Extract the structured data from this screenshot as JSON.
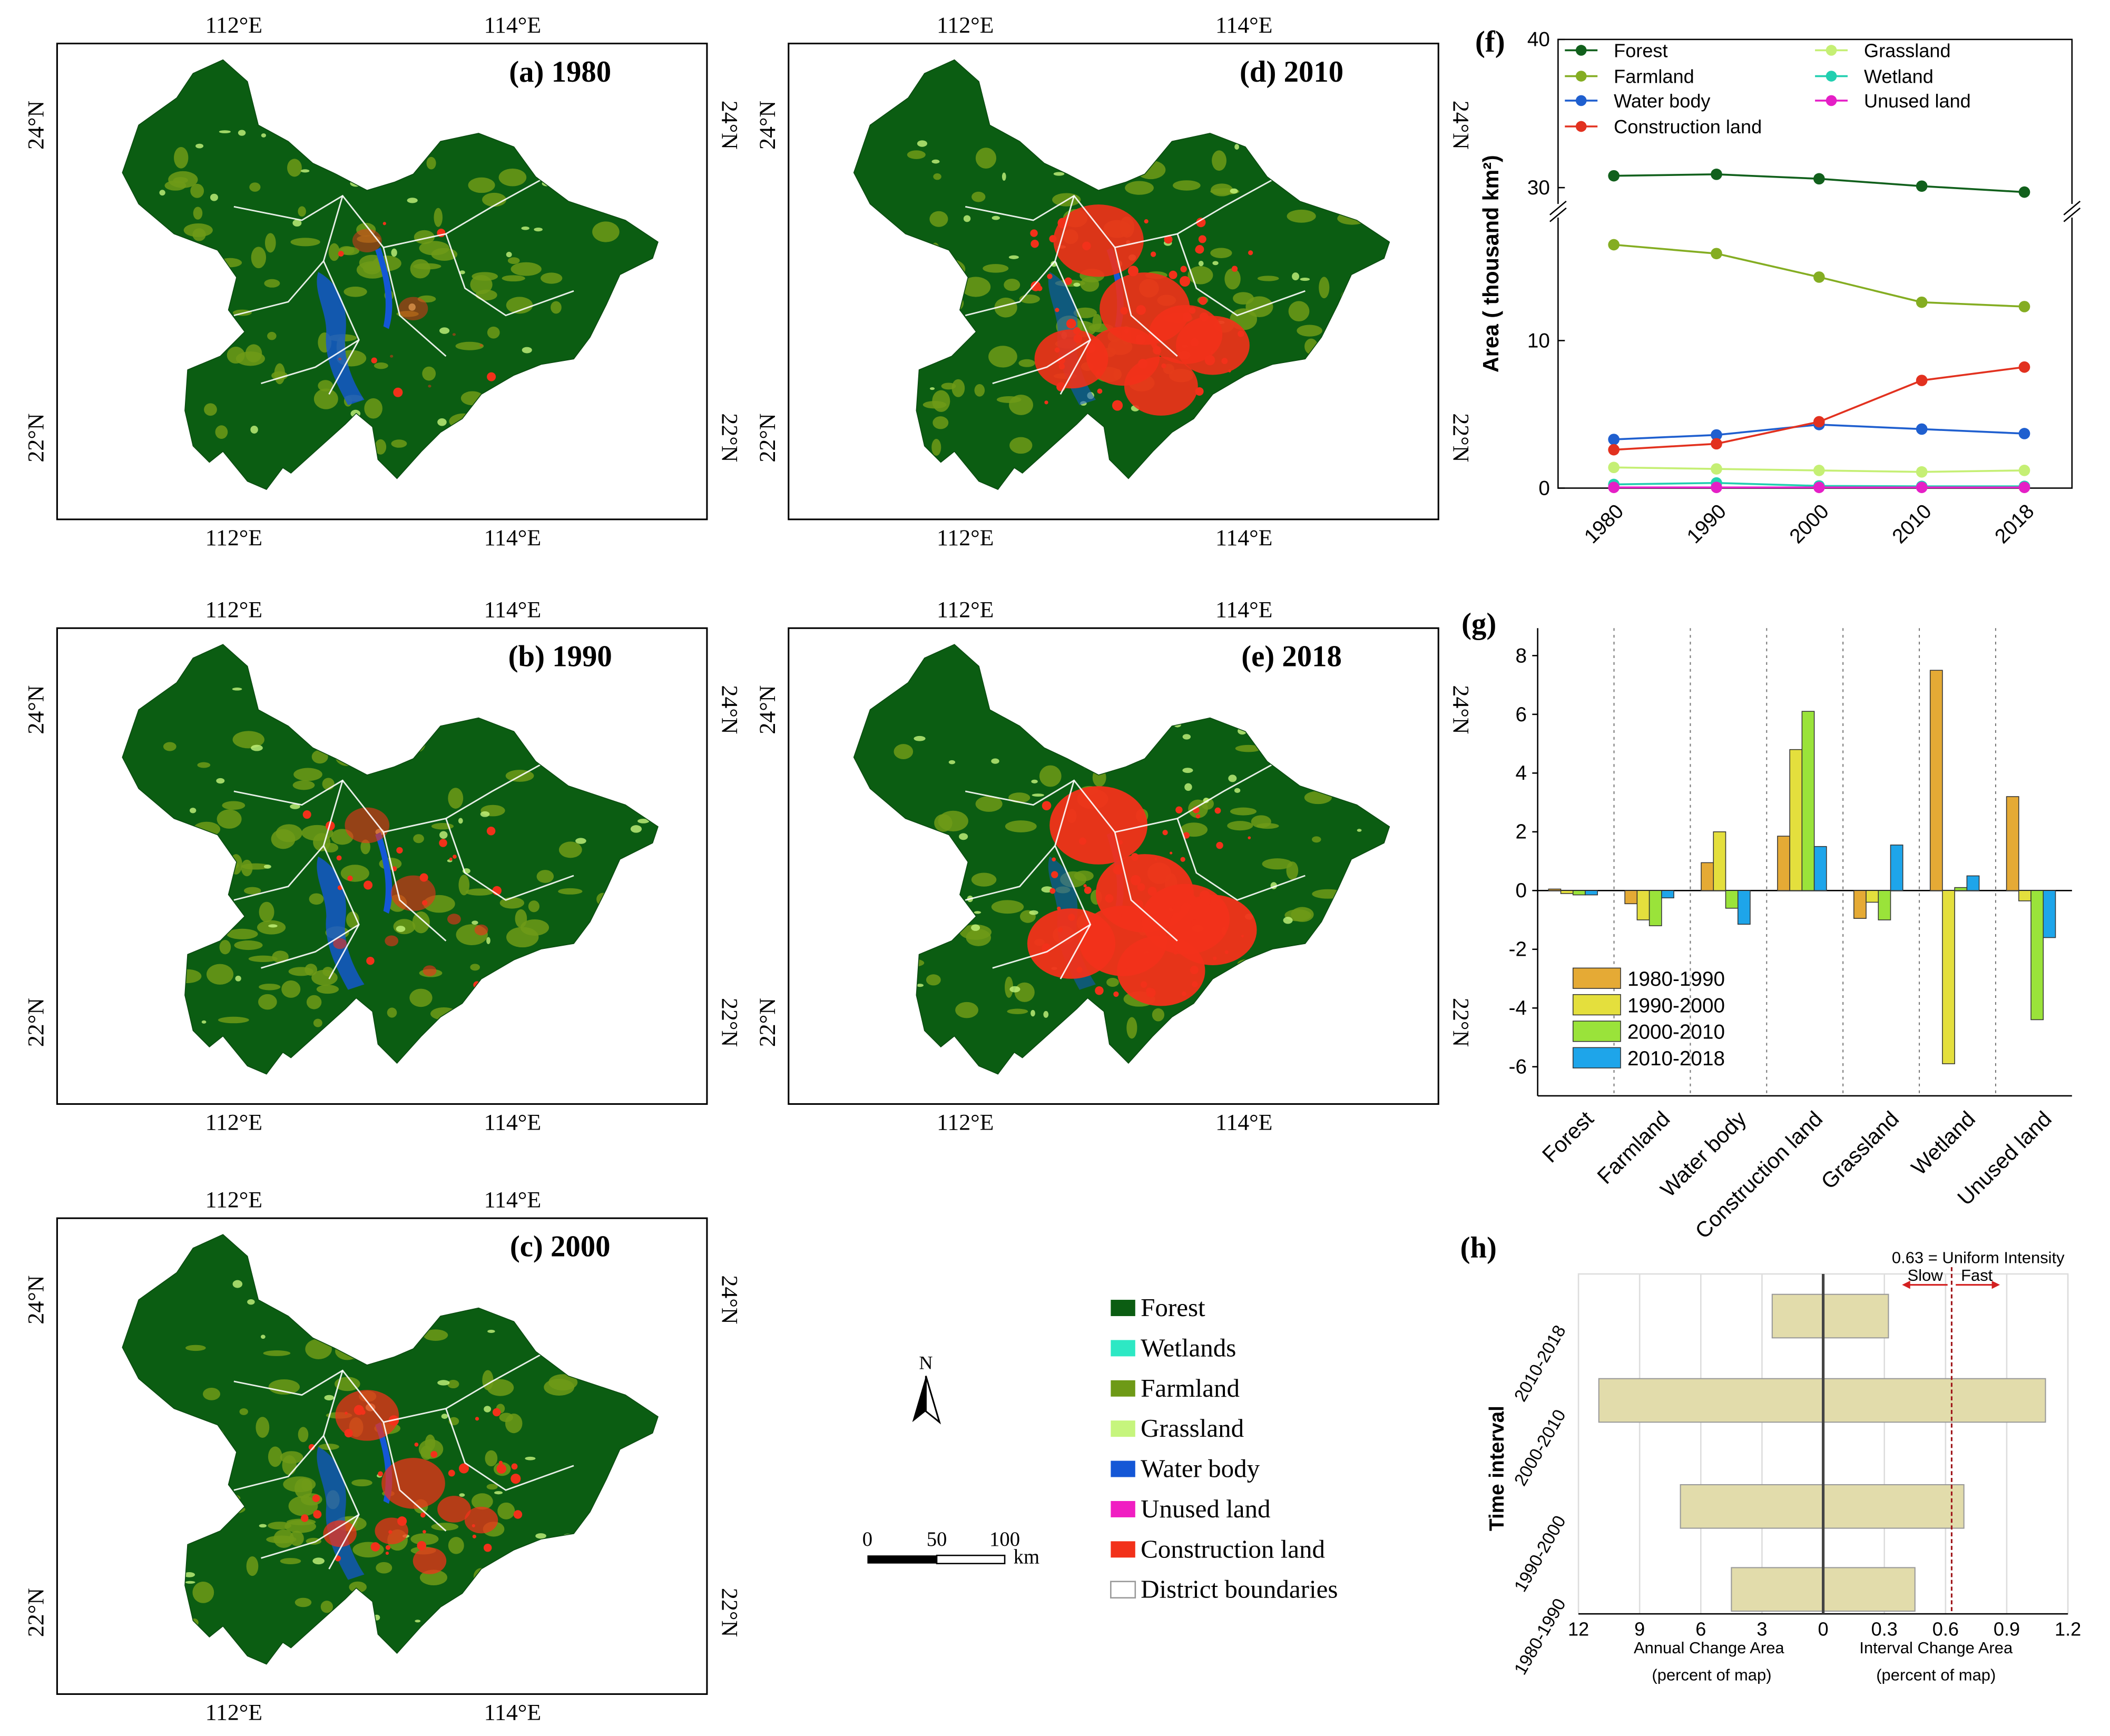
{
  "maps": [
    {
      "id": "a",
      "title": "(a) 1980",
      "construction": 0.1,
      "water": 0.8
    },
    {
      "id": "b",
      "title": "(b) 1990",
      "construction": 0.3,
      "water": 0.8
    },
    {
      "id": "c",
      "title": "(c) 2000",
      "construction": 0.55,
      "water": 0.7
    },
    {
      "id": "d",
      "title": "(d) 2010",
      "construction": 0.9,
      "water": 0.55
    },
    {
      "id": "e",
      "title": "(e) 2018",
      "construction": 1.0,
      "water": 0.5
    }
  ],
  "map_axes": {
    "lon_labels": [
      "112°E",
      "114°E"
    ],
    "lat_labels": [
      "24°N",
      "22°N"
    ]
  },
  "legend": {
    "items": [
      {
        "label": "Forest",
        "color": "#0b5d12"
      },
      {
        "label": "Wetlands",
        "color": "#2de8c4"
      },
      {
        "label": "Farmland",
        "color": "#6e9a17"
      },
      {
        "label": "Grassland",
        "color": "#c6f57d"
      },
      {
        "label": "Water body",
        "color": "#1457d6"
      },
      {
        "label": "Unused land",
        "color": "#f01ec2"
      },
      {
        "label": "Construction land",
        "color": "#f2311a"
      },
      {
        "label": "District boundaries",
        "color": "#ffffff"
      }
    ],
    "north_label": "N",
    "scale_labels": [
      "0",
      "50",
      "100"
    ],
    "scale_unit": "km"
  },
  "chart_data": [
    {
      "panel": "(f)",
      "type": "line",
      "x": [
        "1980",
        "1990",
        "2000",
        "2010",
        "2018"
      ],
      "ylabel": "Area ( thousand km²)",
      "y_ticks": [
        "0",
        "10",
        "30",
        "40"
      ],
      "ylim_lower": [
        0,
        18
      ],
      "ylim_upper": [
        28,
        40
      ],
      "series": [
        {
          "name": "Forest",
          "color": "#11601c",
          "values": [
            30.8,
            30.9,
            30.6,
            30.1,
            29.7
          ]
        },
        {
          "name": "Farmland",
          "color": "#84ad22",
          "values": [
            16.5,
            15.9,
            14.3,
            12.6,
            12.3
          ]
        },
        {
          "name": "Water body",
          "color": "#1f5fcf",
          "values": [
            3.3,
            3.6,
            4.3,
            4.0,
            3.7
          ]
        },
        {
          "name": "Construction land",
          "color": "#e2311f",
          "values": [
            2.6,
            3.0,
            4.5,
            7.3,
            8.2
          ]
        },
        {
          "name": "Grassland",
          "color": "#c5ef74",
          "values": [
            1.4,
            1.3,
            1.2,
            1.1,
            1.2
          ]
        },
        {
          "name": "Wetland",
          "color": "#21cfb0",
          "values": [
            0.25,
            0.35,
            0.15,
            0.12,
            0.12
          ]
        },
        {
          "name": "Unused land",
          "color": "#e51fc6",
          "values": [
            0.05,
            0.05,
            0.05,
            0.05,
            0.05
          ]
        }
      ]
    },
    {
      "panel": "(g)",
      "type": "bar",
      "categories": [
        "Forest",
        "Farmland",
        "Water body",
        "Construction land",
        "Grassland",
        "Wetland",
        "Unused land"
      ],
      "ylim": [
        -7,
        9
      ],
      "y_ticks": [
        "8",
        "6",
        "4",
        "2",
        "0",
        "-2",
        "-4",
        "-6"
      ],
      "series": [
        {
          "name": "1980-1990",
          "color": "#e5aa35",
          "values": [
            0.05,
            -0.45,
            0.95,
            1.85,
            -0.95,
            7.5,
            3.2
          ]
        },
        {
          "name": "1990-2000",
          "color": "#e4df3d",
          "values": [
            -0.1,
            -1.0,
            2.0,
            4.8,
            -0.4,
            -5.9,
            -0.35
          ]
        },
        {
          "name": "2000-2010",
          "color": "#9ae33a",
          "values": [
            -0.15,
            -1.2,
            -0.6,
            6.1,
            -1.0,
            0.1,
            -4.4
          ]
        },
        {
          "name": "2010-2018",
          "color": "#1ea5ea",
          "values": [
            -0.15,
            -0.25,
            -1.15,
            1.5,
            1.55,
            0.5,
            -1.6
          ]
        }
      ]
    },
    {
      "panel": "(h)",
      "type": "bar",
      "orientation": "horizontal",
      "categories": [
        "2010-2018",
        "2000-2010",
        "1990-2000",
        "1980-1990"
      ],
      "annual_change_area": [
        2.5,
        11.0,
        7.0,
        4.5
      ],
      "interval_change_area": [
        0.32,
        1.09,
        0.69,
        0.45
      ],
      "uniform_intensity": 0.63,
      "left_ticks": [
        "12",
        "9",
        "6",
        "3",
        "0"
      ],
      "right_ticks": [
        "0.3",
        "0.6",
        "0.9",
        "1.2"
      ],
      "left_xlabel": "Annual Change Area",
      "left_xlabel2": "(percent of map)",
      "right_xlabel": "Interval Change Area",
      "right_xlabel2": "(percent of map)",
      "ylabel": "Time    interval",
      "annotation": "0.63 = Uniform Intensity",
      "slow_label": "Slow",
      "fast_label": "Fast",
      "bar_color": "#e2dcab"
    }
  ]
}
